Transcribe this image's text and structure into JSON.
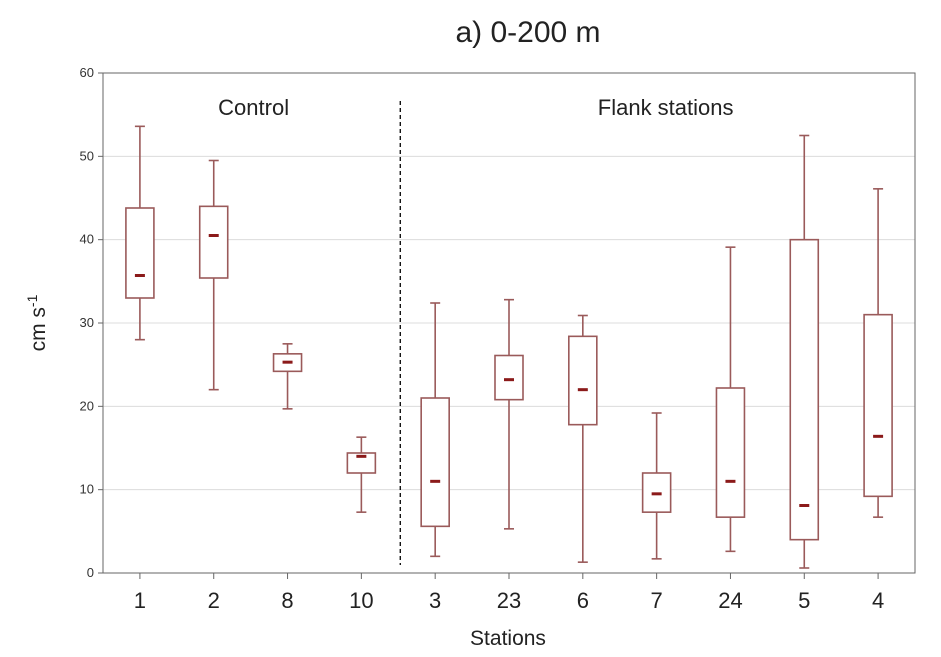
{
  "chart_data": {
    "type": "boxplot",
    "title": "a)  0-200 m",
    "xlabel": "Stations",
    "ylabel": "cm s",
    "ylabel_superscript": "-1",
    "ylim": [
      0,
      60
    ],
    "yticks": [
      0,
      10,
      20,
      30,
      40,
      50,
      60
    ],
    "grid": true,
    "groups": [
      {
        "label": "Control",
        "categories": [
          "1",
          "2",
          "8",
          "10"
        ]
      },
      {
        "label": "Flank stations",
        "categories": [
          "3",
          "23",
          "6",
          "7",
          "24",
          "5",
          "4"
        ]
      }
    ],
    "categories": [
      "1",
      "2",
      "8",
      "10",
      "3",
      "23",
      "6",
      "7",
      "24",
      "5",
      "4"
    ],
    "boxes": [
      {
        "station": "1",
        "min": 28.0,
        "q1": 33.0,
        "median": 35.7,
        "q3": 43.8,
        "max": 53.6
      },
      {
        "station": "2",
        "min": 22.0,
        "q1": 35.4,
        "median": 40.5,
        "q3": 44.0,
        "max": 49.5
      },
      {
        "station": "8",
        "min": 19.7,
        "q1": 24.2,
        "median": 25.3,
        "q3": 26.3,
        "max": 27.5
      },
      {
        "station": "10",
        "min": 7.3,
        "q1": 12.0,
        "median": 14.0,
        "q3": 14.4,
        "max": 16.3
      },
      {
        "station": "3",
        "min": 2.0,
        "q1": 5.6,
        "median": 11.0,
        "q3": 21.0,
        "max": 32.4
      },
      {
        "station": "23",
        "min": 5.3,
        "q1": 20.8,
        "median": 23.2,
        "q3": 26.1,
        "max": 32.8
      },
      {
        "station": "6",
        "min": 1.3,
        "q1": 17.8,
        "median": 22.0,
        "q3": 28.4,
        "max": 30.9
      },
      {
        "station": "7",
        "min": 1.7,
        "q1": 7.3,
        "median": 9.5,
        "q3": 12.0,
        "max": 19.2
      },
      {
        "station": "24",
        "min": 2.6,
        "q1": 6.7,
        "median": 11.0,
        "q3": 22.2,
        "max": 39.1
      },
      {
        "station": "5",
        "min": 0.6,
        "q1": 4.0,
        "median": 8.1,
        "q3": 40.0,
        "max": 52.5
      },
      {
        "station": "4",
        "min": 6.7,
        "q1": 9.2,
        "median": 16.4,
        "q3": 31.0,
        "max": 46.1
      }
    ],
    "colors": {
      "box": "#9a5a5a",
      "median": "#8b1a1a",
      "grid": "#dcdcdc",
      "axis": "#666666",
      "divider": "#000000"
    }
  }
}
